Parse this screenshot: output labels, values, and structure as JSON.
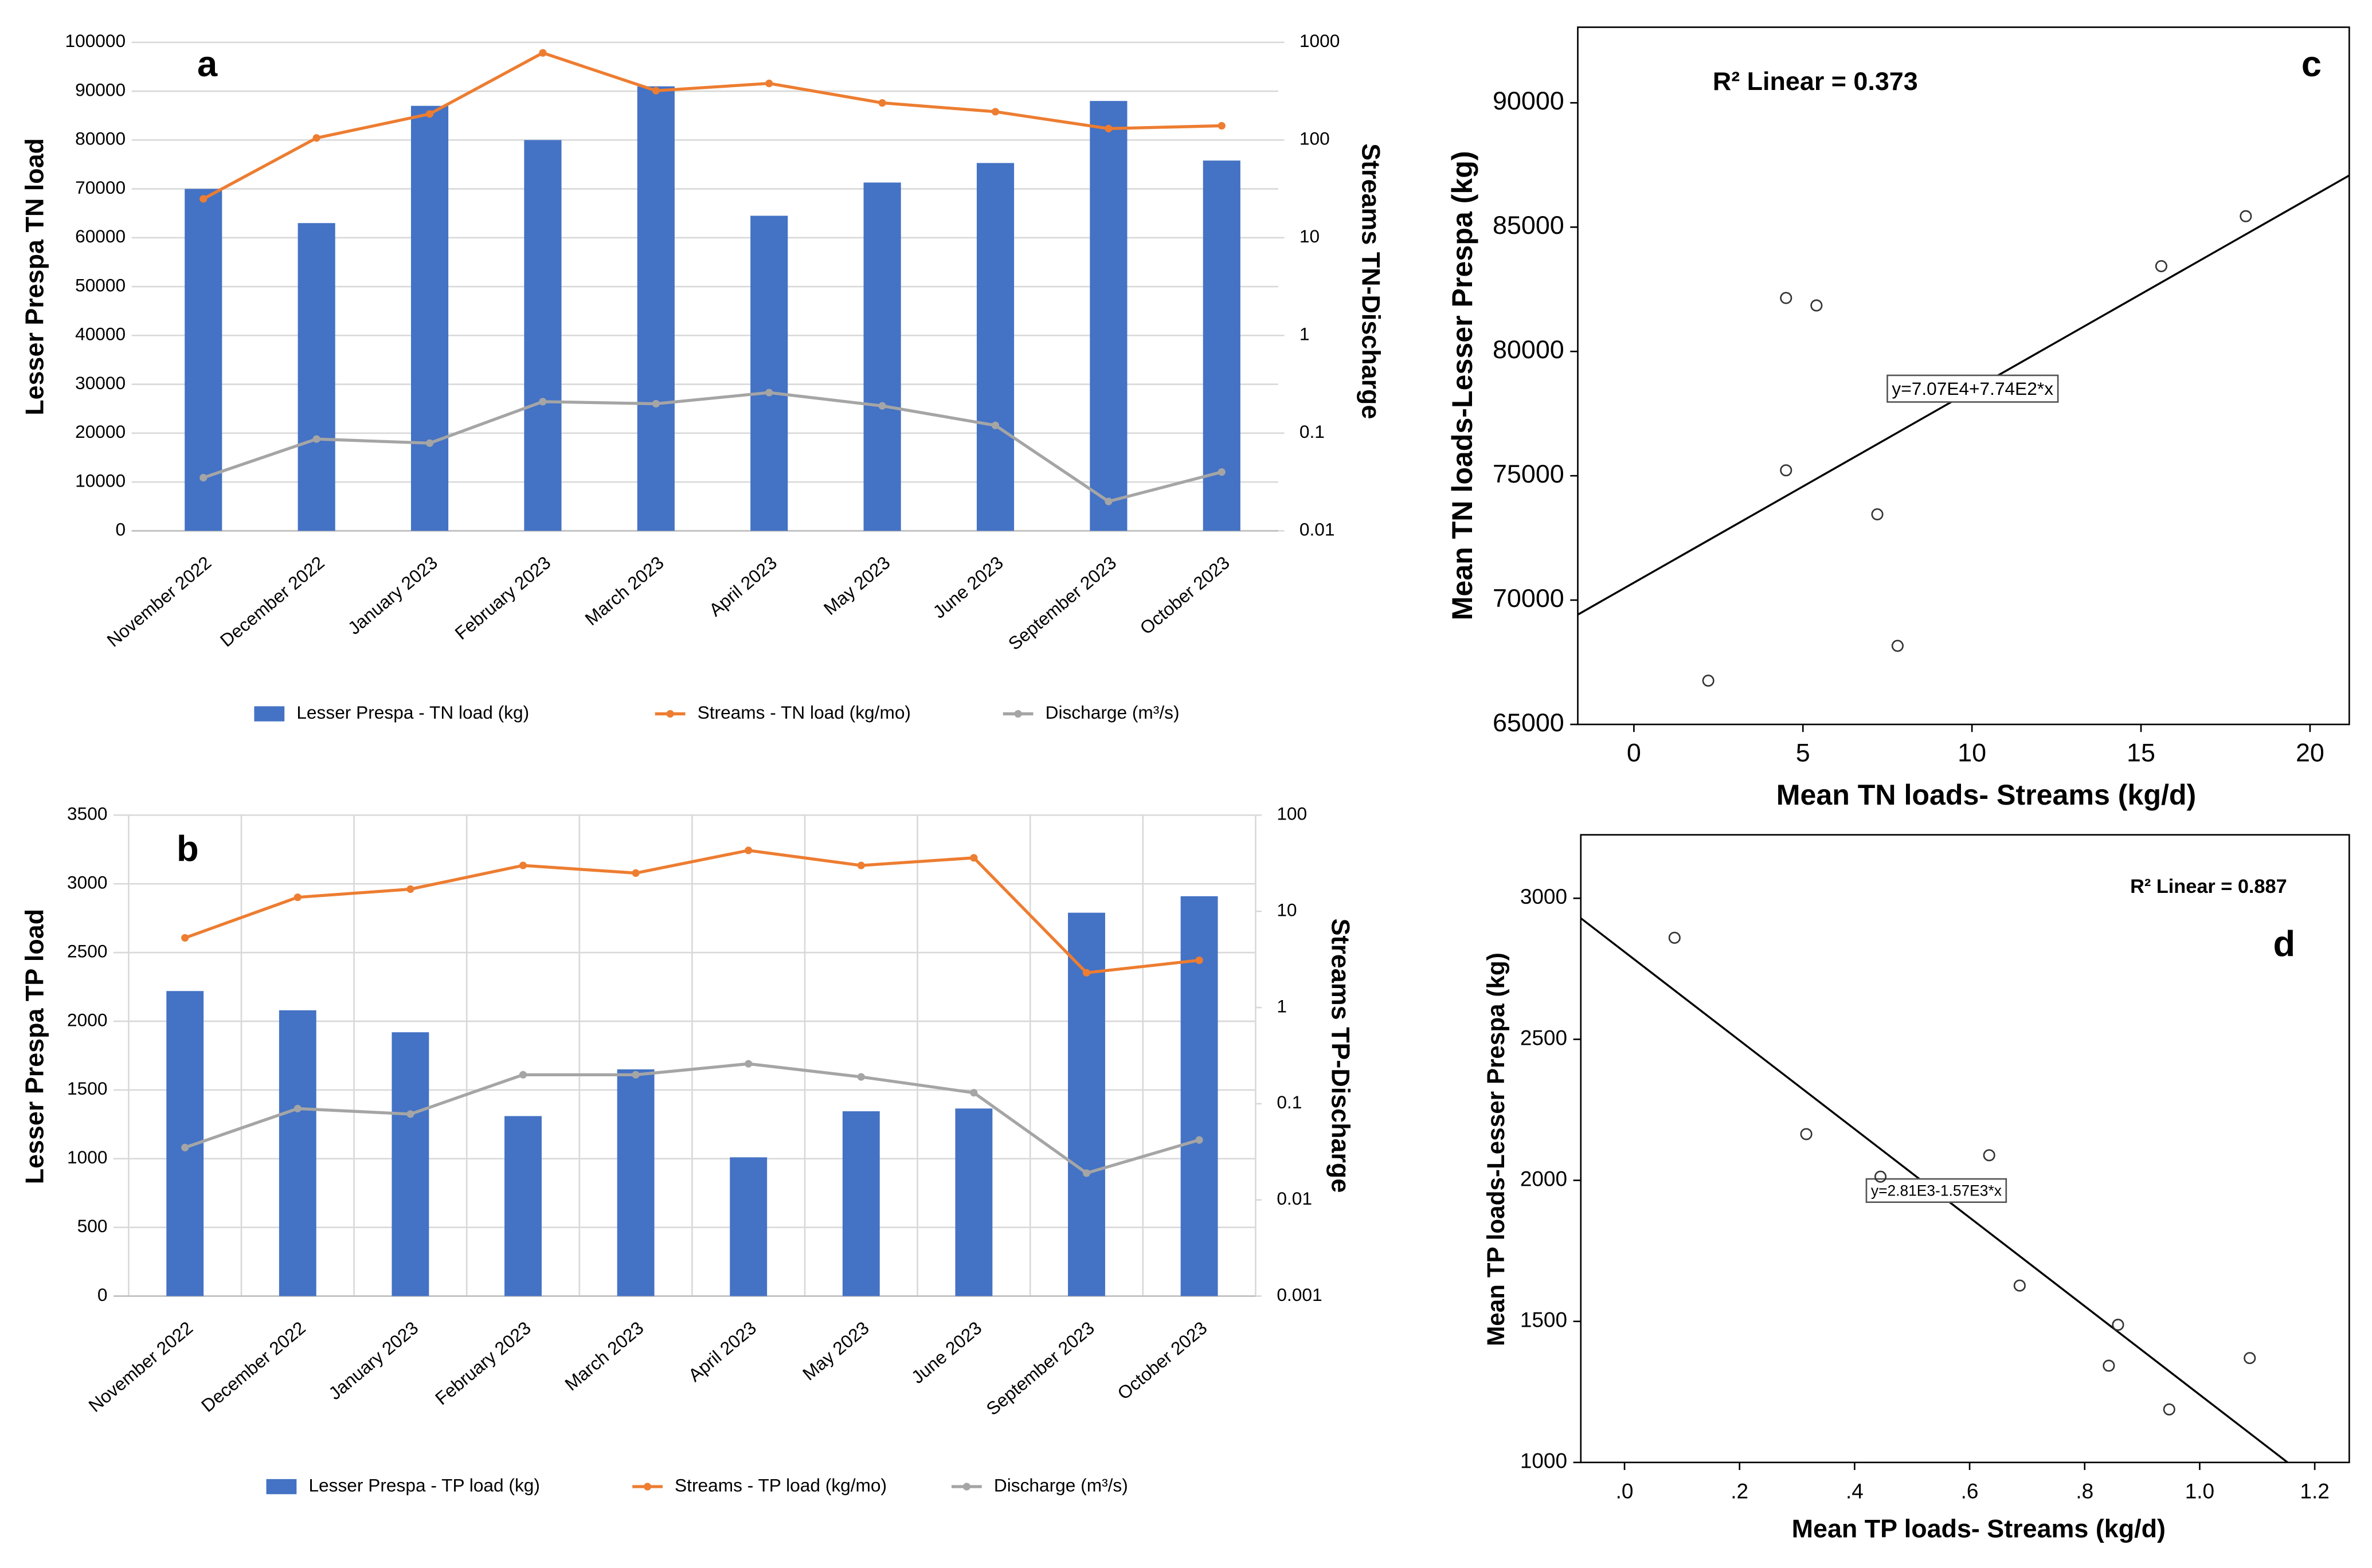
{
  "chart_data": [
    {
      "type": "combo",
      "panel_label": "a",
      "y_label": "Lesser Prespa TN load",
      "y2_label": "Streams TN-Discharge",
      "categories": [
        "November 2022",
        "December 2022",
        "January 2023",
        "February 2023",
        "March 2023",
        "April 2023",
        "May 2023",
        "June 2023",
        "September 2023",
        "October 2023"
      ],
      "ylim": [
        0,
        100000
      ],
      "yticks": [
        0,
        10000,
        20000,
        30000,
        40000,
        50000,
        60000,
        70000,
        80000,
        90000,
        100000
      ],
      "y2lim": [
        0.01,
        1000
      ],
      "y2ticks": [
        0.01,
        0.1,
        1,
        10,
        100,
        1000
      ],
      "y2_log": true,
      "grid": true,
      "x_grid": false,
      "series": [
        {
          "name": "Lesser Prespa - TN load (kg)",
          "type": "bar",
          "color": "#4472c4",
          "values": [
            70000,
            63000,
            87000,
            80000,
            91000,
            64500,
            71300,
            75300,
            88000,
            75800
          ]
        },
        {
          "name": "Streams - TN load (kg/mo)",
          "type": "line",
          "axis": "y2",
          "color": "#ed7d31",
          "values": [
            25,
            105,
            185,
            780,
            320,
            380,
            240,
            195,
            131,
            140
          ]
        },
        {
          "name": "Discharge (m³/s)",
          "type": "line",
          "axis": "y2",
          "color": "#a5a5a5",
          "values": [
            0.035,
            0.087,
            0.079,
            0.21,
            0.2,
            0.26,
            0.19,
            0.12,
            0.02,
            0.04
          ]
        }
      ]
    },
    {
      "type": "combo",
      "panel_label": "b",
      "y_label": "Lesser Prespa TP load",
      "y2_label": "Streams TP-Discharge",
      "categories": [
        "November 2022",
        "December 2022",
        "January 2023",
        "February 2023",
        "March 2023",
        "April 2023",
        "May 2023",
        "June 2023",
        "September 2023",
        "October 2023"
      ],
      "ylim": [
        0,
        3500
      ],
      "yticks": [
        0,
        500,
        1000,
        1500,
        2000,
        2500,
        3000,
        3500
      ],
      "y2lim": [
        0.001,
        100
      ],
      "y2ticks": [
        0.001,
        0.01,
        0.1,
        1,
        10,
        100
      ],
      "y2_log": true,
      "grid": true,
      "x_grid": true,
      "series": [
        {
          "name": "Lesser Prespa - TP load (kg)",
          "type": "bar",
          "color": "#4472c4",
          "values": [
            2220,
            2080,
            1920,
            1310,
            1650,
            1010,
            1345,
            1365,
            2790,
            2910
          ]
        },
        {
          "name": "Streams - TP load (kg/mo)",
          "type": "line",
          "axis": "y2",
          "color": "#ed7d31",
          "values": [
            5.3,
            14,
            17,
            30,
            25,
            43,
            30,
            36,
            2.3,
            3.1
          ]
        },
        {
          "name": "Discharge (m³/s)",
          "type": "line",
          "axis": "y2",
          "color": "#a5a5a5",
          "values": [
            0.035,
            0.089,
            0.078,
            0.2,
            0.2,
            0.26,
            0.19,
            0.13,
            0.019,
            0.042
          ]
        }
      ]
    },
    {
      "type": "scatter",
      "panel_label": "c",
      "annotation": "R² Linear = 0.373",
      "x_label": "Mean TN loads- Streams (kg/d)",
      "y_label": "Mean TN loads-Lesser Prespa (kg)",
      "x": [
        2.2,
        4.5,
        5.4,
        4.5,
        7.2,
        7.8,
        15.6,
        18.1
      ],
      "values": [
        66760,
        82150,
        81850,
        75220,
        73450,
        68160,
        83430,
        85440
      ],
      "xlim": [
        -1.66,
        21.16
      ],
      "xticks": [
        0,
        5,
        10,
        15,
        20
      ],
      "ylim": [
        65000,
        93040
      ],
      "yticks": [
        65000,
        70000,
        75000,
        80000,
        85000,
        90000
      ],
      "fit": {
        "label": "y=7.07E4+7.74E2*x",
        "intercept": 70700,
        "slope": 774
      }
    },
    {
      "type": "scatter",
      "panel_label": "d",
      "annotation": "R² Linear = 0.887",
      "x_label": "Mean TP loads- Streams (kg/d)",
      "y_label": "Mean TP loads-Lesser Prespa (kg)",
      "x": [
        0.087,
        0.316,
        0.445,
        0.634,
        0.687,
        0.858,
        0.842,
        0.947,
        1.087
      ],
      "values": [
        2860,
        2164,
        2013,
        2089,
        1627,
        1488,
        1343,
        1188,
        1370
      ],
      "xlim": [
        -0.076,
        1.26
      ],
      "xticks": [
        {
          "value": 0,
          "label": ".0"
        },
        {
          "value": 0.2,
          "label": ".2"
        },
        {
          "value": 0.4,
          "label": ".4"
        },
        {
          "value": 0.6,
          "label": ".6"
        },
        {
          "value": 0.8,
          "label": ".8"
        },
        {
          "value": 1,
          "label": "1.0"
        },
        1.2
      ],
      "ylim": [
        1000,
        3225
      ],
      "yticks": [
        1000,
        1500,
        2000,
        2500,
        3000
      ],
      "fit": {
        "label": "y=2.81E3-1.57E3*x",
        "intercept": 2810,
        "slope": -1570
      }
    }
  ]
}
